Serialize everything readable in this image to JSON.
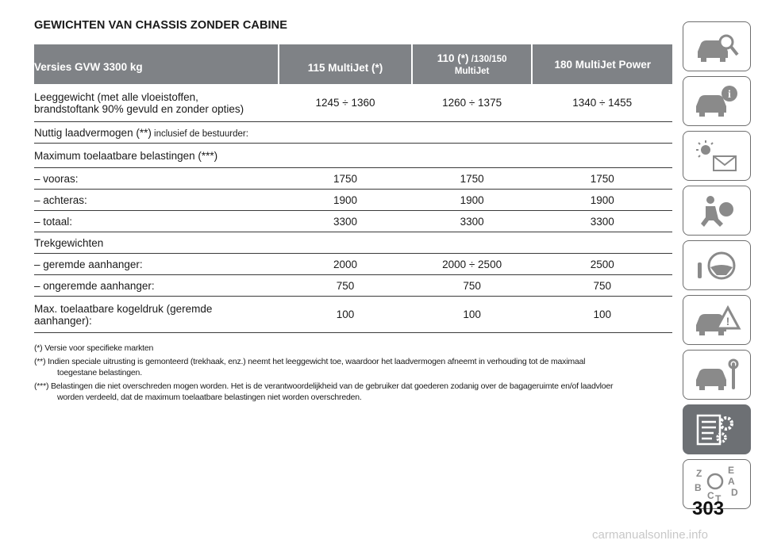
{
  "title": "GEWICHTEN VAN CHASSIS ZONDER CABINE",
  "table": {
    "header": {
      "col0": "Versies GVW 3300 kg",
      "col1": "115 MultiJet (*)",
      "col2_main": "110 (*)",
      "col2_small": " /130/150",
      "col2_line2": "MultiJet",
      "col3": "180 MultiJet Power"
    },
    "rows": [
      {
        "label": "Leeggewicht (met alle vloeistoffen,",
        "label2": "brandstoftank 90% gevuld en zonder opties)",
        "v1": "1245 ÷ 1360",
        "v2": "1260 ÷ 1375",
        "v3": "1340 ÷ 1455"
      },
      {
        "label": "Nuttig laadvermogen (**)",
        "label_small": " inclusief de bestuurder:"
      },
      {
        "label": "Maximum toelaatbare belastingen (***)"
      },
      {
        "label": "– vooras:",
        "v1": "1750",
        "v2": "1750",
        "v3": "1750"
      },
      {
        "label": "– achteras:",
        "v1": "1900",
        "v2": "1900",
        "v3": "1900"
      },
      {
        "label": "– totaal:",
        "v1": "3300",
        "v2": "3300",
        "v3": "3300"
      },
      {
        "label": "Trekgewichten"
      },
      {
        "label": "– geremde aanhanger:",
        "v1": "2000",
        "v2": "2000 ÷ 2500",
        "v3": "2500"
      },
      {
        "label": "– ongeremde aanhanger:",
        "v1": "750",
        "v2": "750",
        "v3": "750"
      },
      {
        "label": "Max. toelaatbare kogeldruk (geremde",
        "label2": "aanhanger):",
        "v1": "100",
        "v2": "100",
        "v3": "100"
      }
    ]
  },
  "footnotes": {
    "n1": "(*) Versie voor specifieke markten",
    "n2a": "(**) Indien speciale uitrusting is gemonteerd (trekhaak, enz.) neemt het leeggewicht toe, waardoor het laadvermogen afneemt in verhouding tot de maximaal",
    "n2b": "toegestane belastingen.",
    "n3a": "(***) Belastingen die niet overschreden mogen worden. Het is de verantwoordelijkheid van de gebruiker dat goederen zodanig over de bagageruimte en/of laadvloer",
    "n3b": "worden verdeeld, dat de maximum toelaatbare belastingen niet worden overschreden."
  },
  "sidebar": {
    "tabs": [
      {
        "icon": "car-search-icon"
      },
      {
        "icon": "car-info-icon"
      },
      {
        "icon": "warning-lights-icon"
      },
      {
        "icon": "airbag-safety-icon"
      },
      {
        "icon": "steering-wheel-icon"
      },
      {
        "icon": "car-emergency-icon"
      },
      {
        "icon": "car-maintenance-icon"
      },
      {
        "icon": "technical-data-icon",
        "active": true
      },
      {
        "icon": "alphabetical-index-icon"
      }
    ],
    "index_letters": [
      "Z",
      "E",
      "A",
      "B",
      "C",
      "T",
      "D"
    ]
  },
  "page_number": "303",
  "watermark": "carmanualsonline.info",
  "colors": {
    "header_bg": "#7f8286",
    "active_tab": "#6d7074",
    "icon_gray": "#8a8a8a"
  }
}
